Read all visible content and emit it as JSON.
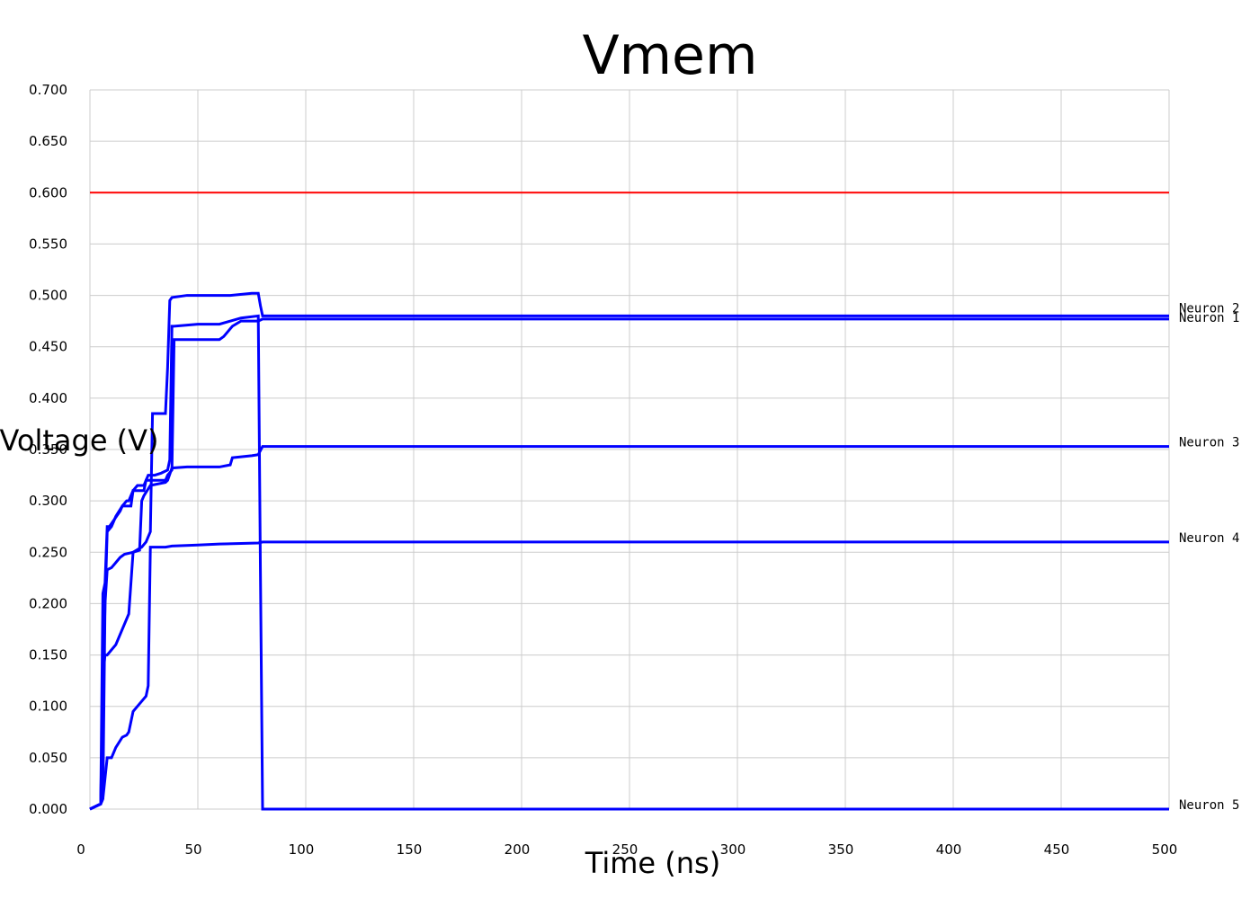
{
  "chart_data": {
    "type": "line",
    "title": "Vmem",
    "xlabel": "Time (ns)",
    "ylabel": "Voltage (V)",
    "xlim": [
      0,
      500
    ],
    "ylim": [
      0,
      0.7
    ],
    "x_ticks": [
      "0",
      "50",
      "100",
      "150",
      "200",
      "250",
      "300",
      "350",
      "400",
      "450",
      "500"
    ],
    "y_ticks": [
      "0.000",
      "0.050",
      "0.100",
      "0.150",
      "0.200",
      "0.250",
      "0.300",
      "0.350",
      "0.400",
      "0.450",
      "0.500",
      "0.550",
      "0.600",
      "0.650",
      "0.700"
    ],
    "grid": true,
    "legend": "line-end labels",
    "threshold": {
      "value": 0.6,
      "color": "#ff0000"
    },
    "series": [
      {
        "name": "Neuron 1",
        "color": "#0000ff",
        "x": [
          0,
          5,
          6,
          7,
          8,
          9,
          14,
          15,
          19,
          20,
          25,
          26,
          35,
          36,
          38,
          39,
          60,
          62,
          66,
          70,
          78,
          79,
          80,
          500
        ],
        "y": [
          0,
          0.005,
          0.21,
          0.22,
          0.275,
          0.275,
          0.29,
          0.295,
          0.295,
          0.31,
          0.31,
          0.32,
          0.32,
          0.325,
          0.33,
          0.457,
          0.457,
          0.46,
          0.47,
          0.475,
          0.475,
          0.476,
          0.477,
          0.477
        ]
      },
      {
        "name": "Neuron 2",
        "color": "#0000ff",
        "x": [
          0,
          5,
          6,
          7,
          8,
          12,
          18,
          20,
          24,
          26,
          28,
          29,
          35,
          36,
          37,
          38,
          45,
          60,
          65,
          75,
          78,
          79,
          80,
          500
        ],
        "y": [
          0,
          0.005,
          0.13,
          0.15,
          0.15,
          0.16,
          0.19,
          0.25,
          0.255,
          0.26,
          0.27,
          0.385,
          0.385,
          0.43,
          0.495,
          0.498,
          0.5,
          0.5,
          0.5,
          0.502,
          0.502,
          0.49,
          0.48,
          0.48
        ]
      },
      {
        "name": "Neuron 3",
        "color": "#0000ff",
        "x": [
          0,
          5,
          6,
          7,
          8,
          10,
          14,
          16,
          20,
          23,
          24,
          25,
          28,
          35,
          36,
          38,
          45,
          60,
          65,
          66,
          75,
          78,
          80,
          500
        ],
        "y": [
          0,
          0.005,
          0.1,
          0.2,
          0.233,
          0.235,
          0.245,
          0.248,
          0.25,
          0.252,
          0.3,
          0.305,
          0.315,
          0.318,
          0.32,
          0.332,
          0.333,
          0.333,
          0.335,
          0.342,
          0.344,
          0.345,
          0.353,
          0.353
        ]
      },
      {
        "name": "Neuron 4",
        "color": "#0000ff",
        "x": [
          0,
          5,
          6,
          7,
          8,
          10,
          12,
          15,
          17,
          18,
          20,
          22,
          26,
          27,
          28,
          30,
          35,
          38,
          50,
          60,
          78,
          80,
          500
        ],
        "y": [
          0,
          0.005,
          0.01,
          0.03,
          0.05,
          0.05,
          0.06,
          0.07,
          0.072,
          0.075,
          0.095,
          0.1,
          0.11,
          0.12,
          0.255,
          0.255,
          0.255,
          0.256,
          0.257,
          0.258,
          0.259,
          0.26,
          0.26
        ]
      },
      {
        "name": "Neuron 5",
        "color": "#0000ff",
        "x": [
          0,
          5,
          6,
          7,
          8,
          10,
          12,
          15,
          17,
          18,
          20,
          22,
          25,
          27,
          28,
          30,
          33,
          36,
          37,
          38,
          39,
          50,
          60,
          65,
          70,
          78,
          79,
          80,
          500
        ],
        "y": [
          0,
          0.005,
          0.01,
          0.2,
          0.27,
          0.275,
          0.285,
          0.295,
          0.3,
          0.3,
          0.31,
          0.315,
          0.315,
          0.325,
          0.325,
          0.325,
          0.327,
          0.33,
          0.34,
          0.47,
          0.47,
          0.472,
          0.472,
          0.475,
          0.478,
          0.48,
          0.23,
          0.0,
          0.0
        ]
      }
    ]
  }
}
